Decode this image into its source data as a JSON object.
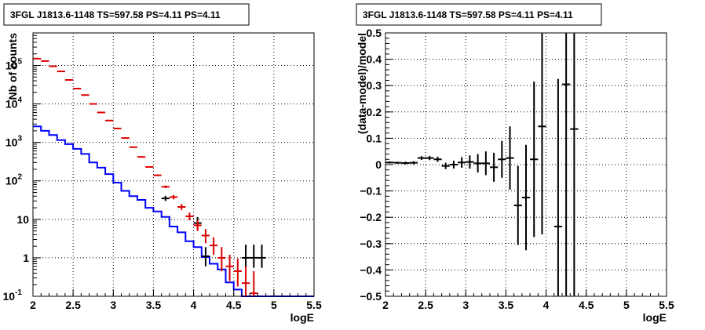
{
  "chart_data": [
    {
      "type": "scatter",
      "title": "3FGL J1813.6-1148 TS=597.58 PS=4.11 PS=4.11",
      "xlabel": "logE",
      "ylabel": "Nb of counts",
      "xlim": [
        2,
        5.5
      ],
      "ylim": [
        0.1,
        700000
      ],
      "log_y": true,
      "grid": true,
      "x_ticks": [
        "2",
        "2.5",
        "3",
        "3.5",
        "4",
        "4.5",
        "5",
        "5.5"
      ],
      "y_ticks": [
        {
          "v": 0.1,
          "label": "10",
          "exp": "-1"
        },
        {
          "v": 1,
          "label": "1",
          "exp": ""
        },
        {
          "v": 10,
          "label": "10",
          "exp": ""
        },
        {
          "v": 100,
          "label": "10",
          "exp": "2"
        },
        {
          "v": 1000,
          "label": "10",
          "exp": "3"
        },
        {
          "v": 10000,
          "label": "10",
          "exp": "4"
        },
        {
          "v": 100000,
          "label": "10",
          "exp": "5"
        }
      ],
      "series": [
        {
          "style": "step",
          "color": "#0000ff",
          "edges": [
            2.0,
            2.1,
            2.2,
            2.3,
            2.4,
            2.5,
            2.6,
            2.7,
            2.8,
            2.9,
            3.0,
            3.1,
            3.2,
            3.3,
            3.4,
            3.5,
            3.6,
            3.7,
            3.8,
            3.9,
            4.0,
            4.1,
            4.2,
            4.3,
            4.4,
            4.5,
            4.6,
            4.7,
            4.8,
            4.9,
            5.0,
            5.1,
            5.2,
            5.3,
            5.4,
            5.5
          ],
          "values": [
            2600,
            2000,
            1550,
            1150,
            900,
            680,
            500,
            300,
            220,
            150,
            90,
            55,
            40,
            32,
            20,
            16,
            11.5,
            6.5,
            4.6,
            2.7,
            1.9,
            1.05,
            0.7,
            0.5,
            0.23,
            0.15,
            0.1,
            0.1,
            0.1,
            0.1,
            0.1,
            0.1,
            0.1,
            0.1,
            0.1
          ]
        },
        {
          "style": "errorbar",
          "color": "#000000",
          "points": [
            {
              "x": 3.65,
              "y": 35,
              "ylo": 30,
              "yhi": 41,
              "xw": 0.05
            },
            {
              "x": 4.05,
              "y": 8,
              "ylo": 5.5,
              "yhi": 11.5,
              "xw": 0.05
            },
            {
              "x": 4.15,
              "y": 1.1,
              "ylo": 0.6,
              "yhi": 1.9,
              "xw": 0.05
            },
            {
              "x": 4.65,
              "y": 1,
              "ylo": 0.55,
              "yhi": 2.2,
              "xw": 0.05
            },
            {
              "x": 4.75,
              "y": 1,
              "ylo": 0.55,
              "yhi": 2.2,
              "xw": 0.05
            },
            {
              "x": 4.85,
              "y": 1,
              "ylo": 0.55,
              "yhi": 2.2,
              "xw": 0.05
            }
          ]
        },
        {
          "style": "errorbar",
          "color": "#dd0000",
          "points": [
            {
              "x": 2.05,
              "y": 150000,
              "ylo": 148000,
              "yhi": 152000,
              "xw": 0.05
            },
            {
              "x": 2.15,
              "y": 130000,
              "ylo": 128000,
              "yhi": 132000,
              "xw": 0.05
            },
            {
              "x": 2.25,
              "y": 95000,
              "ylo": 93000,
              "yhi": 97000,
              "xw": 0.05
            },
            {
              "x": 2.35,
              "y": 70000,
              "ylo": 68500,
              "yhi": 71500,
              "xw": 0.05
            },
            {
              "x": 2.45,
              "y": 42000,
              "ylo": 41000,
              "yhi": 43000,
              "xw": 0.05
            },
            {
              "x": 2.55,
              "y": 25000,
              "ylo": 24300,
              "yhi": 25700,
              "xw": 0.05
            },
            {
              "x": 2.65,
              "y": 17000,
              "ylo": 16500,
              "yhi": 17500,
              "xw": 0.05
            },
            {
              "x": 2.75,
              "y": 10000,
              "ylo": 9700,
              "yhi": 10300,
              "xw": 0.05
            },
            {
              "x": 2.85,
              "y": 6000,
              "ylo": 5800,
              "yhi": 6200,
              "xw": 0.05
            },
            {
              "x": 2.95,
              "y": 3700,
              "ylo": 3600,
              "yhi": 3800,
              "xw": 0.05
            },
            {
              "x": 3.05,
              "y": 2300,
              "ylo": 2230,
              "yhi": 2370,
              "xw": 0.05
            },
            {
              "x": 3.15,
              "y": 1300,
              "ylo": 1260,
              "yhi": 1340,
              "xw": 0.05
            },
            {
              "x": 3.25,
              "y": 750,
              "ylo": 725,
              "yhi": 775,
              "xw": 0.05
            },
            {
              "x": 3.35,
              "y": 420,
              "ylo": 405,
              "yhi": 435,
              "xw": 0.05
            },
            {
              "x": 3.45,
              "y": 230,
              "ylo": 220,
              "yhi": 240,
              "xw": 0.05
            },
            {
              "x": 3.55,
              "y": 140,
              "ylo": 133,
              "yhi": 147,
              "xw": 0.05
            },
            {
              "x": 3.65,
              "y": 70,
              "ylo": 65,
              "yhi": 76,
              "xw": 0.05
            },
            {
              "x": 3.75,
              "y": 38,
              "ylo": 33,
              "yhi": 43,
              "xw": 0.05
            },
            {
              "x": 3.85,
              "y": 21,
              "ylo": 17.5,
              "yhi": 25,
              "xw": 0.05
            },
            {
              "x": 3.95,
              "y": 12,
              "ylo": 9.5,
              "yhi": 15,
              "xw": 0.05
            },
            {
              "x": 4.05,
              "y": 7,
              "ylo": 5,
              "yhi": 9.5,
              "xw": 0.05
            },
            {
              "x": 4.15,
              "y": 3.8,
              "ylo": 2.4,
              "yhi": 5.6,
              "xw": 0.05
            },
            {
              "x": 4.25,
              "y": 2.1,
              "ylo": 1.2,
              "yhi": 3.4,
              "xw": 0.05
            },
            {
              "x": 4.35,
              "y": 1,
              "ylo": 0.45,
              "yhi": 1.9,
              "xw": 0.05
            },
            {
              "x": 4.45,
              "y": 0.6,
              "ylo": 0.25,
              "yhi": 1.2,
              "xw": 0.05
            },
            {
              "x": 4.55,
              "y": 0.45,
              "ylo": 0.18,
              "yhi": 0.95,
              "xw": 0.05
            },
            {
              "x": 4.65,
              "y": 0.22,
              "ylo": 0.1,
              "yhi": 0.6,
              "xw": 0.05
            },
            {
              "x": 4.75,
              "y": 0.12,
              "ylo": 0.1,
              "yhi": 0.45,
              "xw": 0.05
            }
          ]
        }
      ]
    },
    {
      "type": "scatter",
      "title": "3FGL J1813.6-1148 TS=597.58 PS=4.11 PS=4.11",
      "xlabel": "logE",
      "ylabel": "(data-model)/model",
      "xlim": [
        2,
        5.5
      ],
      "ylim": [
        -0.5,
        0.5
      ],
      "log_y": false,
      "grid": true,
      "x_ticks": [
        "2",
        "2.5",
        "3",
        "3.5",
        "4",
        "4.5",
        "5",
        "5.5"
      ],
      "y_ticks": [
        {
          "v": -0.5,
          "label": "−0.5"
        },
        {
          "v": -0.4,
          "label": "−0.4"
        },
        {
          "v": -0.3,
          "label": "−0.3"
        },
        {
          "v": -0.2,
          "label": "−0.2"
        },
        {
          "v": -0.1,
          "label": "−0.1"
        },
        {
          "v": 0,
          "label": "0"
        },
        {
          "v": 0.1,
          "label": "0.1"
        },
        {
          "v": 0.2,
          "label": "0.2"
        },
        {
          "v": 0.3,
          "label": "0.3"
        },
        {
          "v": 0.4,
          "label": "0.4"
        },
        {
          "v": 0.5,
          "label": "0.5"
        }
      ],
      "series": [
        {
          "style": "errorbar",
          "color": "#000000",
          "points": [
            {
              "x": 2.05,
              "y": 0.008,
              "ylo": 0.004,
              "yhi": 0.012,
              "xw": 0.05
            },
            {
              "x": 2.15,
              "y": 0.007,
              "ylo": 0.003,
              "yhi": 0.011,
              "xw": 0.05
            },
            {
              "x": 2.25,
              "y": 0.006,
              "ylo": 0.001,
              "yhi": 0.011,
              "xw": 0.05
            },
            {
              "x": 2.35,
              "y": 0.007,
              "ylo": 0.001,
              "yhi": 0.013,
              "xw": 0.05
            },
            {
              "x": 2.45,
              "y": 0.025,
              "ylo": 0.018,
              "yhi": 0.032,
              "xw": 0.05
            },
            {
              "x": 2.55,
              "y": 0.025,
              "ylo": 0.017,
              "yhi": 0.033,
              "xw": 0.05
            },
            {
              "x": 2.65,
              "y": 0.02,
              "ylo": 0.01,
              "yhi": 0.03,
              "xw": 0.05
            },
            {
              "x": 2.75,
              "y": -0.005,
              "ylo": -0.017,
              "yhi": 0.007,
              "xw": 0.05
            },
            {
              "x": 2.85,
              "y": 0.0,
              "ylo": -0.015,
              "yhi": 0.015,
              "xw": 0.05
            },
            {
              "x": 2.95,
              "y": 0.008,
              "ylo": -0.012,
              "yhi": 0.028,
              "xw": 0.05
            },
            {
              "x": 3.05,
              "y": 0.01,
              "ylo": -0.015,
              "yhi": 0.035,
              "xw": 0.05
            },
            {
              "x": 3.15,
              "y": 0.005,
              "ylo": -0.03,
              "yhi": 0.04,
              "xw": 0.05
            },
            {
              "x": 3.25,
              "y": 0.005,
              "ylo": -0.04,
              "yhi": 0.05,
              "xw": 0.05
            },
            {
              "x": 3.35,
              "y": -0.01,
              "ylo": -0.065,
              "yhi": 0.045,
              "xw": 0.05
            },
            {
              "x": 3.45,
              "y": 0.02,
              "ylo": -0.05,
              "yhi": 0.09,
              "xw": 0.05
            },
            {
              "x": 3.55,
              "y": 0.025,
              "ylo": -0.095,
              "yhi": 0.145,
              "xw": 0.05
            },
            {
              "x": 3.65,
              "y": -0.155,
              "ylo": -0.305,
              "yhi": -0.005,
              "xw": 0.05
            },
            {
              "x": 3.75,
              "y": -0.125,
              "ylo": -0.325,
              "yhi": 0.075,
              "xw": 0.05
            },
            {
              "x": 3.85,
              "y": 0.02,
              "ylo": -0.275,
              "yhi": 0.315,
              "xw": 0.05
            },
            {
              "x": 3.95,
              "y": 0.145,
              "ylo": -0.265,
              "yhi": 0.5,
              "xw": 0.05
            },
            {
              "x": 4.15,
              "y": -0.235,
              "ylo": -0.5,
              "yhi": 0.325,
              "xw": 0.05
            },
            {
              "x": 4.25,
              "y": 0.305,
              "ylo": -0.5,
              "yhi": 0.5,
              "xw": 0.05
            },
            {
              "x": 4.35,
              "y": 0.135,
              "ylo": -0.5,
              "yhi": 0.5,
              "xw": 0.05
            }
          ]
        }
      ]
    }
  ]
}
